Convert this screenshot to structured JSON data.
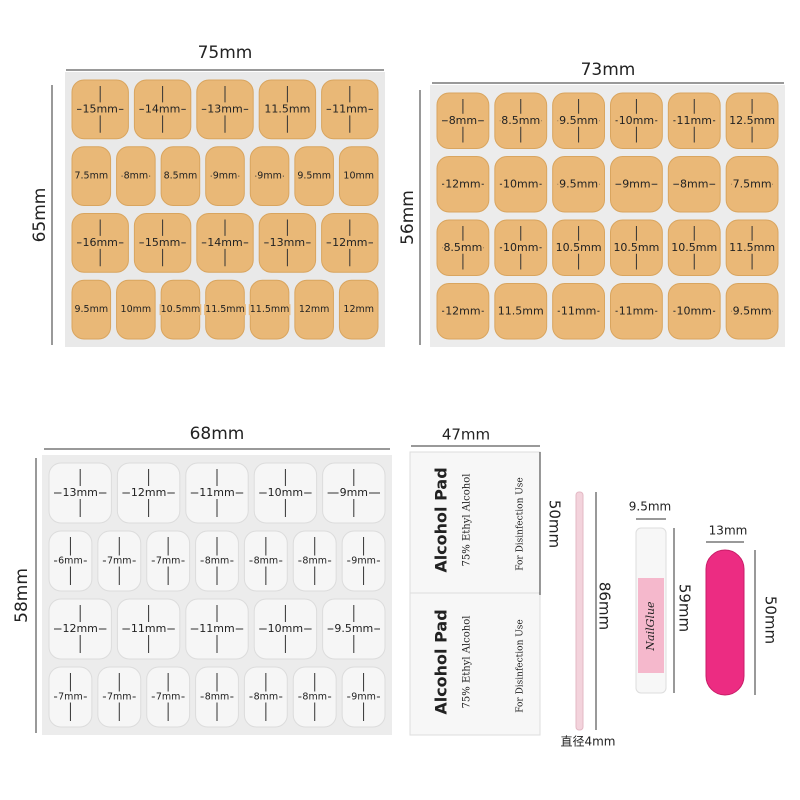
{
  "panels": [
    {
      "width_label": "75mm",
      "height_label": "65mm",
      "rows": [
        [
          "15mm",
          "14mm",
          "13mm",
          "11.5mm",
          "11mm"
        ],
        [
          "7.5mm",
          "8mm",
          "8.5mm",
          "9mm",
          "9mm",
          "9.5mm",
          "10mm"
        ],
        [
          "16mm",
          "15mm",
          "14mm",
          "13mm",
          "12mm"
        ],
        [
          "9.5mm",
          "10mm",
          "10.5mm",
          "11.5mm",
          "11.5mm",
          "12mm",
          "12mm"
        ]
      ]
    },
    {
      "width_label": "73mm",
      "height_label": "56mm",
      "rows": [
        [
          "8mm",
          "8.5mm",
          "9.5mm",
          "10mm",
          "11mm",
          "12.5mm"
        ],
        [
          "12mm",
          "10mm",
          "9.5mm",
          "9mm",
          "8mm",
          "7.5mm"
        ],
        [
          "8.5mm",
          "10mm",
          "10.5mm",
          "10.5mm",
          "10.5mm",
          "11.5mm"
        ],
        [
          "12mm",
          "11.5mm",
          "11mm",
          "11mm",
          "10mm",
          "9.5mm"
        ]
      ]
    },
    {
      "width_label": "68mm",
      "height_label": "58mm",
      "rows": [
        [
          "13mm",
          "12mm",
          "11mm",
          "10mm",
          "9mm"
        ],
        [
          "6mm",
          "7mm",
          "7mm",
          "8mm",
          "8mm",
          "8mm",
          "9mm"
        ],
        [
          "12mm",
          "11mm",
          "11mm",
          "10mm",
          "9.5mm"
        ],
        [
          "7mm",
          "7mm",
          "7mm",
          "8mm",
          "8mm",
          "8mm",
          "9mm"
        ]
      ]
    }
  ],
  "alcohol_pad": {
    "width_label": "47mm",
    "height_label": "50mm",
    "packets": [
      {
        "title": "Alcohol Pad",
        "subtitle": "75% Ethyl Alcohol",
        "note": "For Disinfection Use"
      },
      {
        "title": "Alcohol Pad",
        "subtitle": "75% Ethyl Alcohol",
        "note": "For Disinfection Use"
      }
    ]
  },
  "stick": {
    "length_label": "86mm",
    "diameter_label": "直径4mm"
  },
  "glue": {
    "width_label": "9.5mm",
    "height_label": "59mm",
    "brand": "NailGlue"
  },
  "file": {
    "width_label": "13mm",
    "height_label": "50mm"
  }
}
